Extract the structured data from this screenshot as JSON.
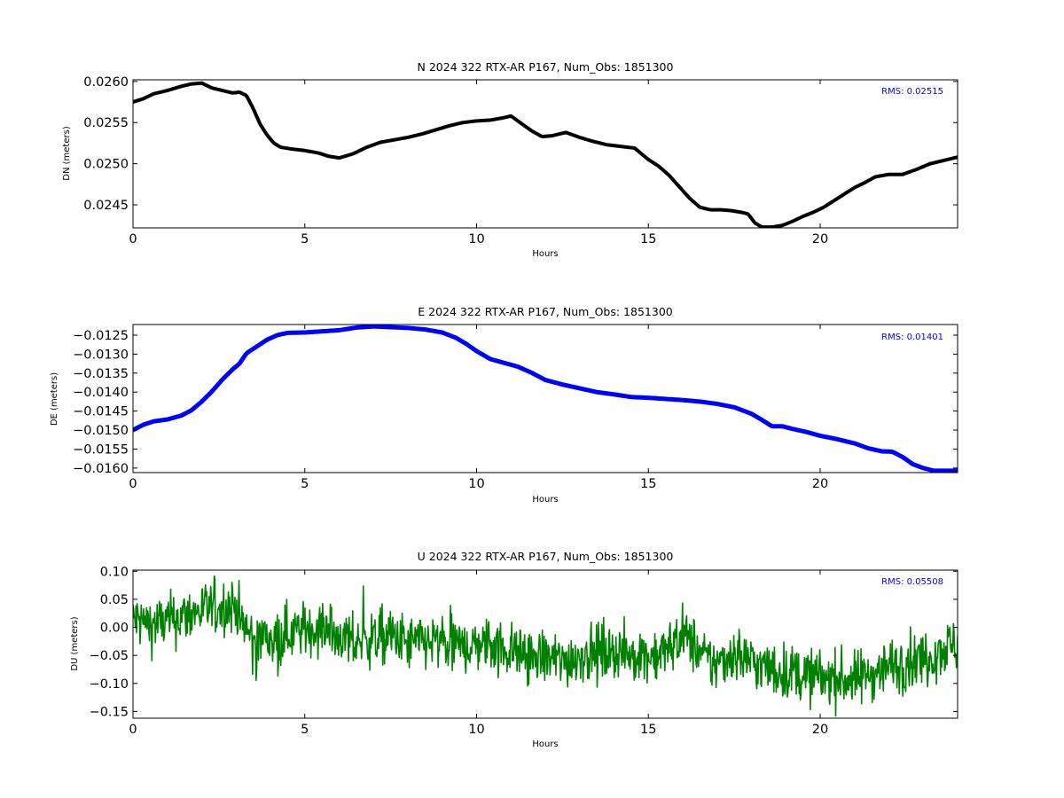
{
  "figure": {
    "background": "#ffffff"
  },
  "chart_data": [
    {
      "type": "line",
      "title": "N 2024 322 RTX-AR  P167, Num_Obs: 1851300",
      "xlabel": "Hours",
      "ylabel": "DN (meters)",
      "xlim": [
        0,
        24
      ],
      "ylim": [
        0.02422,
        0.02602
      ],
      "xticks": [
        0,
        5,
        10,
        15,
        20
      ],
      "xtick_labels": [
        "0",
        "5",
        "10",
        "15",
        "20"
      ],
      "yticks": [
        0.0245,
        0.025,
        0.0255,
        0.026
      ],
      "ytick_labels": [
        "0.0245",
        "0.0250",
        "0.0255",
        "0.0260"
      ],
      "grid": false,
      "rms_label": "RMS:  0.02515",
      "line_width": 4,
      "series": [
        {
          "color": "#000000",
          "noise": 0,
          "x": [
            0,
            0.3,
            0.6,
            1.0,
            1.4,
            1.7,
            2.0,
            2.3,
            2.6,
            2.9,
            3.1,
            3.3,
            3.5,
            3.7,
            3.9,
            4.1,
            4.3,
            4.6,
            5.0,
            5.4,
            5.7,
            6.0,
            6.4,
            6.8,
            7.2,
            7.6,
            8.0,
            8.4,
            8.8,
            9.2,
            9.6,
            10.0,
            10.4,
            10.8,
            11.0,
            11.3,
            11.6,
            11.9,
            12.2,
            12.6,
            13.0,
            13.4,
            13.8,
            14.2,
            14.6,
            15.0,
            15.3,
            15.6,
            15.9,
            16.2,
            16.5,
            16.8,
            17.1,
            17.4,
            17.7,
            17.9,
            18.1,
            18.3,
            18.6,
            18.9,
            19.2,
            19.5,
            19.8,
            20.1,
            20.4,
            20.7,
            21.0,
            21.3,
            21.6,
            22.0,
            22.4,
            22.8,
            23.2,
            23.6,
            24.0
          ],
          "y": [
            0.02575,
            0.02579,
            0.02585,
            0.02589,
            0.02594,
            0.02597,
            0.02598,
            0.02592,
            0.02589,
            0.02586,
            0.02587,
            0.02583,
            0.02567,
            0.02548,
            0.02535,
            0.02525,
            0.0252,
            0.02518,
            0.02516,
            0.02513,
            0.02509,
            0.02507,
            0.02512,
            0.0252,
            0.02526,
            0.02529,
            0.02532,
            0.02536,
            0.02541,
            0.02546,
            0.0255,
            0.02552,
            0.02553,
            0.02556,
            0.02558,
            0.02549,
            0.0254,
            0.02533,
            0.02534,
            0.02538,
            0.02532,
            0.02527,
            0.02523,
            0.02521,
            0.02519,
            0.02505,
            0.02497,
            0.02486,
            0.02472,
            0.02458,
            0.02447,
            0.02444,
            0.02444,
            0.02443,
            0.02441,
            0.02439,
            0.02428,
            0.02423,
            0.02423,
            0.02425,
            0.0243,
            0.02436,
            0.02441,
            0.02447,
            0.02455,
            0.02463,
            0.02471,
            0.02477,
            0.02484,
            0.02487,
            0.02487,
            0.02493,
            0.025,
            0.02504,
            0.02508
          ]
        }
      ]
    },
    {
      "type": "line",
      "title": "E 2024 322 RTX-AR  P167, Num_Obs: 1851300",
      "xlabel": "Hours",
      "ylabel": "DE (meters)",
      "xlim": [
        0,
        24
      ],
      "ylim": [
        -0.01612,
        -0.01222
      ],
      "xticks": [
        0,
        5,
        10,
        15,
        20
      ],
      "xtick_labels": [
        "0",
        "5",
        "10",
        "15",
        "20"
      ],
      "yticks": [
        -0.0125,
        -0.013,
        -0.0135,
        -0.014,
        -0.0145,
        -0.015,
        -0.0155,
        -0.016
      ],
      "ytick_labels": [
        "−0.0125",
        "−0.0130",
        "−0.0135",
        "−0.0140",
        "−0.0145",
        "−0.0150",
        "−0.0155",
        "−0.0160"
      ],
      "grid": false,
      "rms_label": "RMS:  0.01401",
      "line_width": 5,
      "series": [
        {
          "color": "#0000ff",
          "noise": 0,
          "x": [
            0,
            0.3,
            0.6,
            1.0,
            1.4,
            1.7,
            2.0,
            2.3,
            2.6,
            2.9,
            3.1,
            3.3,
            3.6,
            3.9,
            4.2,
            4.5,
            5.0,
            5.5,
            6.0,
            6.5,
            7.0,
            7.5,
            8.0,
            8.5,
            9.0,
            9.4,
            9.7,
            10.0,
            10.4,
            10.8,
            11.2,
            11.6,
            12.0,
            12.5,
            13.0,
            13.5,
            14.0,
            14.5,
            15.0,
            15.5,
            16.0,
            16.5,
            17.0,
            17.5,
            18.0,
            18.3,
            18.6,
            18.9,
            19.2,
            19.6,
            20.0,
            20.5,
            21.0,
            21.4,
            21.8,
            22.1,
            22.4,
            22.7,
            23.0,
            23.3,
            23.6,
            24.0
          ],
          "y": [
            -0.015,
            -0.01486,
            -0.01477,
            -0.01472,
            -0.01462,
            -0.01448,
            -0.01425,
            -0.01398,
            -0.01367,
            -0.0134,
            -0.01325,
            -0.01298,
            -0.0128,
            -0.01262,
            -0.0125,
            -0.01244,
            -0.01243,
            -0.0124,
            -0.01237,
            -0.0123,
            -0.01227,
            -0.01229,
            -0.01231,
            -0.01235,
            -0.01243,
            -0.01257,
            -0.01273,
            -0.01292,
            -0.01313,
            -0.01323,
            -0.01333,
            -0.01349,
            -0.01368,
            -0.0138,
            -0.0139,
            -0.014,
            -0.01406,
            -0.01413,
            -0.01415,
            -0.01418,
            -0.01421,
            -0.01425,
            -0.01431,
            -0.0144,
            -0.01457,
            -0.01473,
            -0.0149,
            -0.0149,
            -0.01497,
            -0.01505,
            -0.01515,
            -0.01524,
            -0.01535,
            -0.01548,
            -0.01556,
            -0.01557,
            -0.01571,
            -0.0159,
            -0.016,
            -0.01607,
            -0.01607,
            -0.01607
          ]
        }
      ]
    },
    {
      "type": "line",
      "title": "U 2024 322 RTX-AR  P167, Num_Obs: 1851300",
      "xlabel": "Hours",
      "ylabel": "DU (meters)",
      "xlim": [
        0,
        24
      ],
      "ylim": [
        -0.162,
        0.102
      ],
      "xticks": [
        0,
        5,
        10,
        15,
        20
      ],
      "xtick_labels": [
        "0",
        "5",
        "10",
        "15",
        "20"
      ],
      "yticks": [
        0.1,
        0.05,
        0.0,
        -0.05,
        -0.1,
        -0.15
      ],
      "ytick_labels": [
        "0.10",
        "0.05",
        "0.00",
        "−0.05",
        "−0.10",
        "−0.15"
      ],
      "grid": false,
      "rms_label": "RMS:  0.05508",
      "line_width": 1.6,
      "series": [
        {
          "color": "#008000",
          "noise": 0.025,
          "x": [
            0,
            0.5,
            1.0,
            1.5,
            2.0,
            2.5,
            3.0,
            3.2,
            3.5,
            4.0,
            4.5,
            5.0,
            5.5,
            6.0,
            6.5,
            7.0,
            7.5,
            8.0,
            8.5,
            9.0,
            9.5,
            10.0,
            10.5,
            11.0,
            11.5,
            12.0,
            12.5,
            13.0,
            13.5,
            14.0,
            14.5,
            15.0,
            15.5,
            16.0,
            16.3,
            16.7,
            17.0,
            17.5,
            18.0,
            18.5,
            19.0,
            19.5,
            20.0,
            20.5,
            21.0,
            21.5,
            22.0,
            22.5,
            23.0,
            23.5,
            24.0
          ],
          "y": [
            0.015,
            0.005,
            0.01,
            0.02,
            0.03,
            0.035,
            0.04,
            0.0,
            -0.015,
            -0.02,
            -0.01,
            -0.005,
            0.0,
            -0.015,
            -0.03,
            -0.02,
            -0.015,
            -0.03,
            -0.025,
            -0.03,
            -0.035,
            -0.03,
            -0.03,
            -0.04,
            -0.05,
            -0.055,
            -0.06,
            -0.05,
            -0.045,
            -0.04,
            -0.05,
            -0.05,
            -0.045,
            -0.01,
            -0.03,
            -0.06,
            -0.065,
            -0.045,
            -0.06,
            -0.075,
            -0.08,
            -0.085,
            -0.09,
            -0.09,
            -0.095,
            -0.08,
            -0.07,
            -0.06,
            -0.055,
            -0.04,
            -0.03
          ]
        }
      ]
    }
  ]
}
